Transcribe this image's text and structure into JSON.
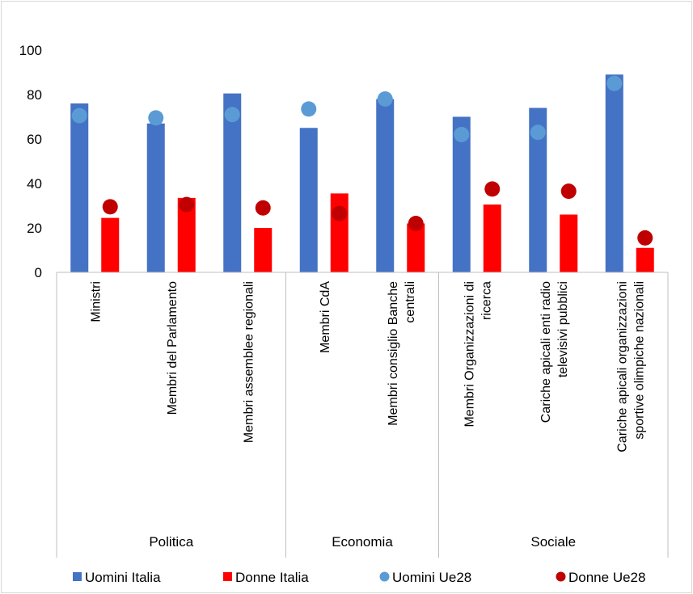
{
  "chart_data": {
    "type": "bar",
    "categories": [
      [
        "Ministri"
      ],
      [
        "Membri del Parlamento"
      ],
      [
        "Membri assemblee regionali"
      ],
      [
        "Membri CdA"
      ],
      [
        "Membri consiglio Banche",
        "centrali"
      ],
      [
        "Membri Organizzazioni di",
        "ricerca"
      ],
      [
        "Cariche apicali enti radio",
        "televisivi pubblici"
      ],
      [
        "Cariche apicali organizzazioni",
        "sportive olimpiche nazionali"
      ]
    ],
    "groups": [
      {
        "label": "Politica",
        "span": [
          0,
          2
        ]
      },
      {
        "label": "Economia",
        "span": [
          3,
          4
        ]
      },
      {
        "label": "Sociale",
        "span": [
          5,
          7
        ]
      }
    ],
    "series": [
      {
        "name": "Uomini Italia",
        "kind": "bar",
        "color": "#4472c4",
        "values": [
          76,
          67,
          80.5,
          65,
          78,
          70,
          74,
          89
        ]
      },
      {
        "name": "Donne Italia",
        "kind": "bar",
        "color": "#ff0000",
        "values": [
          24.5,
          33.5,
          20,
          35.5,
          22,
          30.5,
          26,
          11
        ]
      },
      {
        "name": "Uomini Ue28",
        "kind": "dot",
        "color": "#5b9bd5",
        "values": [
          70.5,
          69.5,
          71,
          73.5,
          78,
          62,
          63,
          85
        ]
      },
      {
        "name": "Donne Ue28",
        "kind": "dot",
        "color": "#c00000",
        "values": [
          29.5,
          30.5,
          29,
          26.5,
          22,
          37.5,
          36.5,
          15.5
        ]
      }
    ],
    "yticks": [
      0,
      20,
      40,
      60,
      80,
      100
    ],
    "ylim": [
      0,
      100
    ],
    "grid": false,
    "legend_position": "bottom"
  }
}
